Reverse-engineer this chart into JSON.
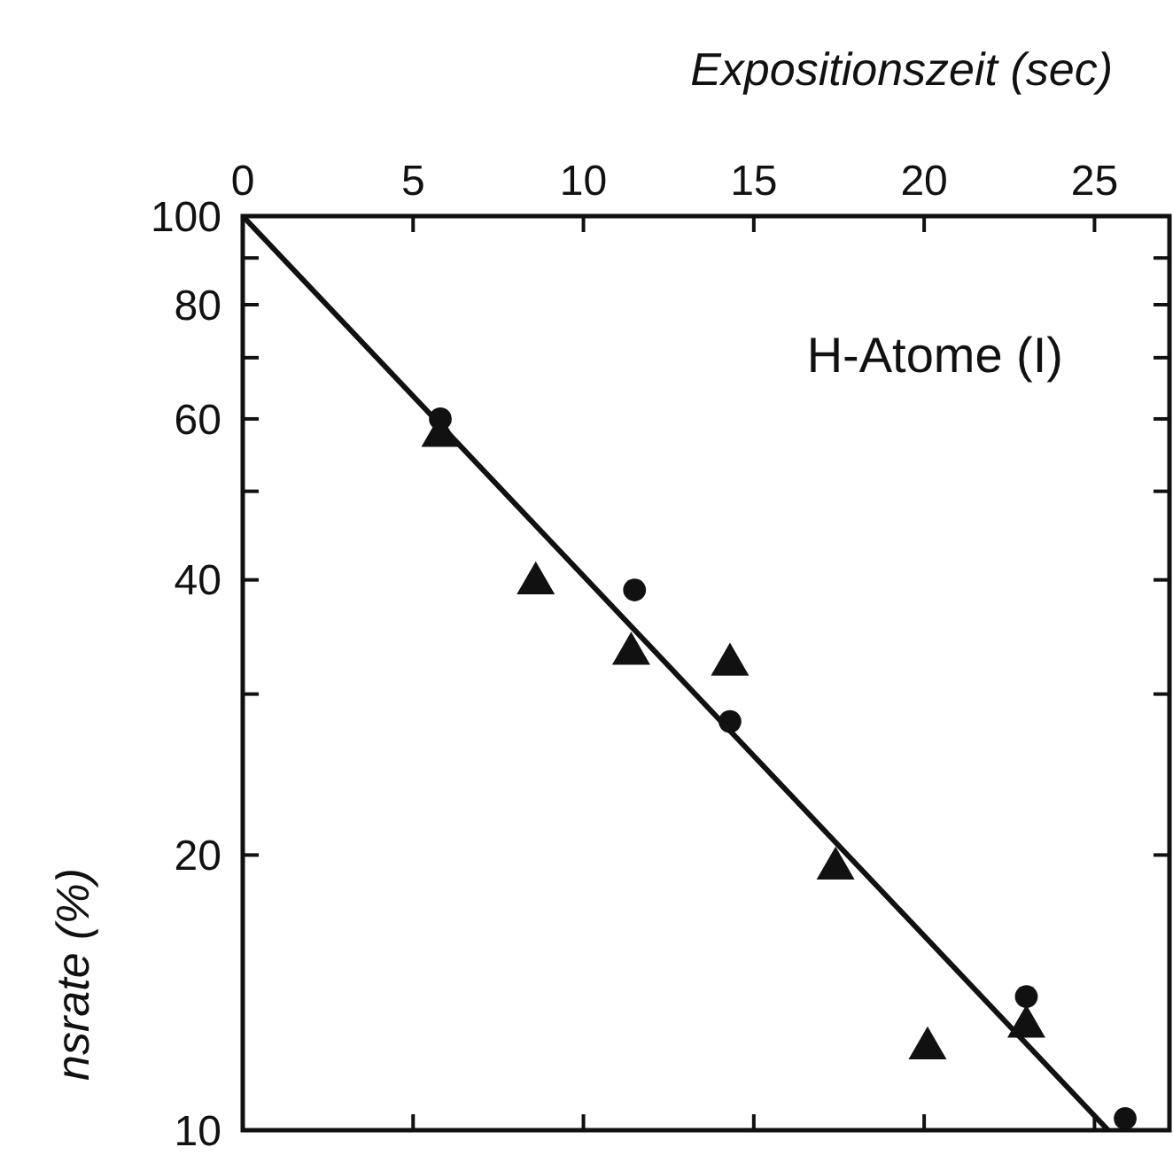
{
  "chart_data": {
    "type": "scatter",
    "xlabel": "Expositionszeit (sec)",
    "ylabel": "nsrate (%)",
    "annotations": [
      "H-Atome (I)"
    ],
    "xlim": [
      0,
      27.2
    ],
    "xticks": [
      0,
      5,
      10,
      15,
      20,
      25
    ],
    "ylim": [
      10,
      100
    ],
    "log": "y",
    "yticks": [
      10,
      20,
      {
        "value": 30,
        "label": null
      },
      40,
      {
        "value": 50,
        "label": null
      },
      60,
      {
        "value": 70,
        "label": null
      },
      80,
      {
        "value": 90,
        "label": null
      },
      100
    ],
    "grid": false,
    "series": [
      {
        "marker": "circle",
        "color": "#111111",
        "x": [
          5.8,
          11.5,
          14.3,
          23.0,
          25.9
        ],
        "values": [
          60,
          39,
          28,
          14,
          10.3
        ]
      },
      {
        "marker": "triangle",
        "color": "#111111",
        "x": [
          5.8,
          8.6,
          11.4,
          14.3,
          17.4,
          20.1,
          23.0
        ],
        "values": [
          58,
          40,
          33.5,
          32.6,
          19.5,
          12.4,
          13.1
        ]
      },
      {
        "type": "line",
        "line_style": "solid",
        "marker": "none",
        "color": "#111111",
        "x": [
          0,
          25.4
        ],
        "values": [
          100,
          10
        ]
      }
    ]
  }
}
